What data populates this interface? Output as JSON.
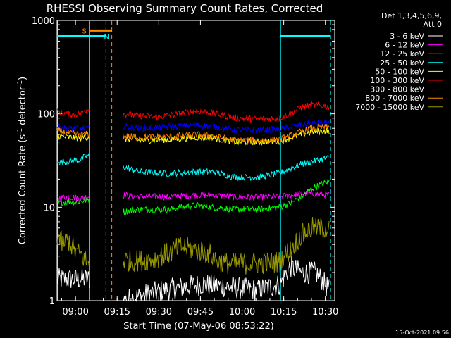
{
  "title": "RHESSI Observing Summary Count Rates, Corrected",
  "date_stamp": "15-Oct-2021 09:56",
  "chart_data": {
    "type": "line",
    "title": "RHESSI Observing Summary Count Rates, Corrected",
    "xlabel": "Start Time (07-May-06 08:53:22)",
    "ylabel": "Corrected Count Rate (s⁻¹ detector⁻¹)",
    "ylabel_parts": [
      "Corrected Count Rate (s",
      "-1",
      " detector",
      "-1",
      ")"
    ],
    "x_units": "minutes after 08:53:22",
    "xlim": [
      0,
      100
    ],
    "ylim": [
      1,
      1000
    ],
    "yscale": "log",
    "x_ticks": [
      {
        "value": 6.63,
        "label": "09:00"
      },
      {
        "value": 21.63,
        "label": "09:15"
      },
      {
        "value": 36.63,
        "label": "09:30"
      },
      {
        "value": 51.63,
        "label": "09:45"
      },
      {
        "value": 66.63,
        "label": "10:00"
      },
      {
        "value": 81.63,
        "label": "10:15"
      },
      {
        "value": 96.63,
        "label": "10:30"
      }
    ],
    "y_ticks": [
      {
        "value": 1,
        "label": "1"
      },
      {
        "value": 10,
        "label": "10"
      },
      {
        "value": 100,
        "label": "100"
      },
      {
        "value": 1000,
        "label": "1000"
      }
    ],
    "legend": {
      "header": [
        "Det 1,3,4,5,6,9,",
        "Att 0"
      ],
      "position": "top-right"
    },
    "series": [
      {
        "name": "3 - 6 keV",
        "color": "#ffffff",
        "x": [
          0,
          12,
          24,
          39,
          52,
          72,
          80.5,
          84,
          88,
          93,
          98
        ],
        "y": [
          1.7,
          1.7,
          1,
          1.3,
          1.5,
          1.3,
          1.5,
          2.3,
          2,
          2,
          1.3
        ]
      },
      {
        "name": "6 - 12 keV",
        "color": "#ff00ff",
        "x": [
          0,
          4,
          8,
          11,
          24,
          30,
          40,
          50,
          56,
          64,
          72,
          80,
          84,
          88,
          93,
          98
        ],
        "y": [
          12.5,
          13,
          12.5,
          13,
          13.5,
          13,
          13,
          13.5,
          13.5,
          12.8,
          12.8,
          13,
          13.5,
          14,
          14,
          13.5
        ]
      },
      {
        "name": "12 - 25 keV",
        "color": "#00ff00",
        "x": [
          0,
          4,
          8,
          11,
          24,
          30,
          40,
          50,
          56,
          64,
          72,
          80,
          84,
          88,
          92,
          96,
          98
        ],
        "y": [
          11,
          11.5,
          11.5,
          12,
          9,
          9.5,
          9.5,
          10.5,
          10,
          9.5,
          9.5,
          10,
          11,
          13,
          16,
          18,
          19
        ]
      },
      {
        "name": "25 - 50 keV",
        "color": "#00ffff",
        "x": [
          0,
          4,
          8,
          11,
          24,
          30,
          40,
          50,
          56,
          64,
          72,
          80,
          84,
          88,
          92,
          96,
          98
        ],
        "y": [
          30,
          31,
          32,
          36,
          27,
          24,
          23,
          24,
          24,
          21,
          21,
          23,
          26,
          29,
          31,
          33,
          34
        ]
      },
      {
        "name": "50 - 100 keV",
        "color": "#ffff00",
        "x": [
          0,
          4,
          8,
          11,
          24,
          30,
          40,
          50,
          56,
          64,
          72,
          80,
          84,
          88,
          92,
          96,
          98
        ],
        "y": [
          58,
          56,
          55,
          57,
          54,
          52,
          53,
          56,
          55,
          50,
          50,
          51,
          55,
          60,
          64,
          66,
          66
        ]
      },
      {
        "name": "100 - 300 keV",
        "color": "#ff0000",
        "x": [
          0,
          4,
          8,
          11,
          24,
          30,
          36,
          44,
          50,
          56,
          64,
          72,
          80,
          84,
          88,
          92,
          96,
          98
        ],
        "y": [
          106,
          98,
          100,
          113,
          100,
          95,
          92,
          100,
          108,
          102,
          90,
          88,
          90,
          100,
          118,
          124,
          122,
          118
        ]
      },
      {
        "name": "300 - 800 keV",
        "color": "#0000ff",
        "x": [
          0,
          4,
          8,
          11,
          24,
          30,
          40,
          50,
          56,
          64,
          72,
          80,
          84,
          88,
          92,
          96,
          98
        ],
        "y": [
          73,
          70,
          69,
          70,
          74,
          70,
          72,
          76,
          73,
          67,
          67,
          68,
          72,
          77,
          79,
          80,
          80
        ]
      },
      {
        "name": "800 - 7000 keV",
        "color": "#ff8800",
        "x": [
          0,
          4,
          8,
          11,
          24,
          30,
          40,
          50,
          56,
          64,
          72,
          80,
          84,
          88,
          92,
          96,
          98
        ],
        "y": [
          66,
          62,
          60,
          61,
          58,
          56,
          57,
          60,
          58,
          52,
          52,
          53,
          58,
          65,
          70,
          72,
          72
        ]
      },
      {
        "name": "7000 - 15000 keV",
        "color": "#999900",
        "x": [
          0,
          2,
          4,
          6,
          9,
          11,
          24,
          30,
          34,
          40,
          45,
          50,
          55,
          58,
          62,
          72,
          80,
          84,
          88,
          92,
          96,
          98
        ],
        "y": [
          5,
          4,
          4.5,
          3.5,
          3,
          2.5,
          2.7,
          2.7,
          2.8,
          3.2,
          3.8,
          3.5,
          3.2,
          2.6,
          2.5,
          2.5,
          2.6,
          3.5,
          5,
          6,
          6,
          6
        ]
      }
    ],
    "flags": {
      "saa_bar": {
        "label": "S",
        "x_range": [
          11.8,
          19.7
        ],
        "y": 780,
        "color": "#ff8800"
      },
      "night_bars": [
        {
          "label": "N",
          "x_range": [
            0,
            17.6
          ],
          "y": 680,
          "color": "#00ffff"
        },
        {
          "label": "",
          "x_range": [
            80.5,
            98.5
          ],
          "y": 680,
          "color": "#00ffff"
        }
      ]
    },
    "vertical_markers": [
      {
        "x": 0,
        "style": "solid",
        "color": "#00ffff"
      },
      {
        "x": 11.8,
        "style": "solid",
        "color": "#ff8800"
      },
      {
        "x": 17.6,
        "style": "dashed",
        "color": "#00ffff"
      },
      {
        "x": 19.7,
        "style": "dashed",
        "color": "#ff8800"
      },
      {
        "x": 80.5,
        "style": "solid",
        "color": "#00ffff"
      },
      {
        "x": 98.5,
        "style": "dashed",
        "color": "#00ffff"
      }
    ]
  }
}
